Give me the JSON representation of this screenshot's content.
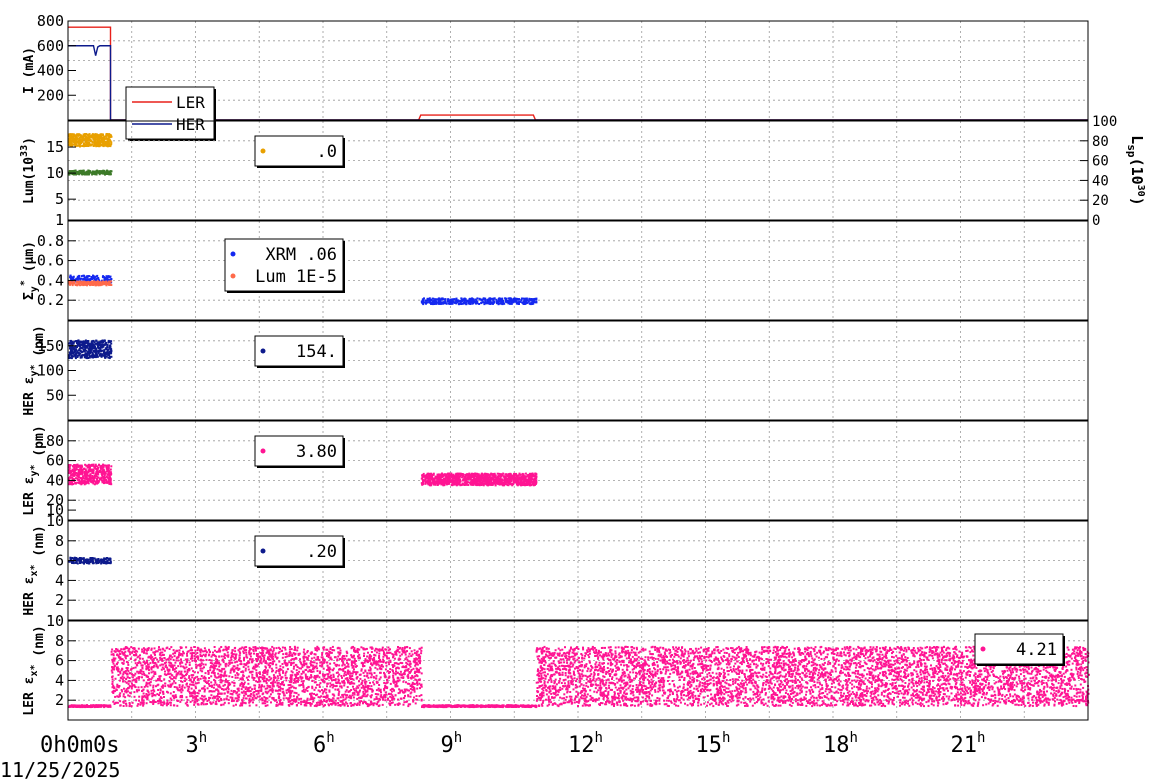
{
  "x_axis": {
    "unit_suffix": "h",
    "first_tick_label": "0h0m0s",
    "date_label": "11/25/2025",
    "tick_labels": [
      "3",
      "6",
      "9",
      "12",
      "15",
      "18",
      "21"
    ],
    "range_hours": [
      0,
      24
    ]
  },
  "colors": {
    "ler_red": "#e8201a",
    "her_navy": "#0d1a8c",
    "orange": "#e8a000",
    "green": "#3c7a28",
    "blue": "#1428f0",
    "salmon": "#ff6a4a",
    "magenta": "#ff1493",
    "grid": "#9a9a9a"
  },
  "chart_data": [
    {
      "id": "current",
      "type": "line",
      "ylabel_main": "I (mA)",
      "ylim": [
        0,
        800
      ],
      "yticks": [
        "800",
        "600",
        "400",
        "200"
      ],
      "legend": [
        {
          "label": "LER",
          "color": "#e8201a"
        },
        {
          "label": "HER",
          "color": "#0d1a8c"
        }
      ],
      "series": [
        {
          "name": "LER",
          "color": "#e8201a",
          "x": [
            0,
            1.0,
            1.0,
            8.25,
            8.3,
            10.95,
            11.0,
            24
          ],
          "y": [
            750,
            750,
            0,
            0,
            40,
            40,
            0,
            0
          ]
        },
        {
          "name": "HER",
          "color": "#0d1a8c",
          "x": [
            0,
            0.6,
            0.65,
            0.7,
            0.75,
            1.0,
            1.0,
            24
          ],
          "y": [
            600,
            600,
            520,
            590,
            600,
            600,
            0,
            0
          ]
        }
      ]
    },
    {
      "id": "luminosity",
      "type": "scatter",
      "ylabel_main": "Lum(10",
      "ylabel_sup": "33",
      "ylabel_end": ")",
      "ylim": [
        1,
        20
      ],
      "yticks": [
        "15",
        "10",
        "5",
        "1"
      ],
      "right_ylabel_main": "L",
      "right_ylabel_sub": "sp",
      "right_ylabel_mid": "(10",
      "right_ylabel_sup": "30",
      "right_ylabel_end": ")",
      "right_ylim": [
        0,
        100
      ],
      "right_yticks": [
        "100",
        "80",
        "60",
        "40",
        "20",
        "0"
      ],
      "legend": [
        {
          "label": ".0",
          "color": "#e8a000"
        }
      ],
      "series": [
        {
          "color": "#e8a000",
          "x_range": [
            0,
            1.0
          ],
          "y_mean": 16.5,
          "y_spread": 1.2
        },
        {
          "color": "#3c7a28",
          "x_range": [
            0,
            1.0
          ],
          "y_mean": 10.3,
          "y_spread": 0.4
        }
      ]
    },
    {
      "id": "sigma_y",
      "type": "scatter",
      "ylabel_main": "Σ",
      "ylabel_sub": "y",
      "ylabel_sup": "*",
      "ylabel_end": " (µm)",
      "ylim": [
        0,
        1.0
      ],
      "yticks": [
        "0.8",
        "0.6",
        "0.4",
        "0.2"
      ],
      "legend": [
        {
          "label": "XRM  .06",
          "color": "#1428f0"
        },
        {
          "label": "Lum 1E-5",
          "color": "#ff6a4a"
        }
      ],
      "series": [
        {
          "name": "XRM",
          "color": "#1428f0",
          "x_range": [
            0,
            1.0
          ],
          "y_mean": 0.42,
          "y_spread": 0.04
        },
        {
          "name": "XRM",
          "color": "#1428f0",
          "x_range": [
            8.3,
            11.0
          ],
          "y_mean": 0.2,
          "y_spread": 0.03
        },
        {
          "name": "Lum",
          "color": "#ff6a4a",
          "x_range": [
            0,
            1.0
          ],
          "y_mean": 0.38,
          "y_spread": 0.02
        }
      ]
    },
    {
      "id": "her_eps_y",
      "type": "scatter",
      "ylabel_main": "HER ε",
      "ylabel_sub": "y*",
      "ylabel_end": " (pm)",
      "ylim": [
        0,
        200
      ],
      "yticks": [
        "150",
        "100",
        "50"
      ],
      "legend": [
        {
          "label": "154.",
          "color": "#0d1a8c"
        }
      ],
      "series": [
        {
          "color": "#0d1a8c",
          "x_range": [
            0,
            1.0
          ],
          "y_mean": 145,
          "y_spread": 18
        }
      ]
    },
    {
      "id": "ler_eps_y",
      "type": "scatter",
      "ylabel_main": "LER ε",
      "ylabel_sub": "y*",
      "ylabel_end": " (pm)",
      "ylim": [
        0,
        100
      ],
      "yticks": [
        "80",
        "60",
        "40",
        "20",
        "10"
      ],
      "legend": [
        {
          "label": "3.80",
          "color": "#ff1493"
        }
      ],
      "series": [
        {
          "color": "#ff1493",
          "x_range": [
            0,
            1.0
          ],
          "y_mean": 47,
          "y_spread": 10
        },
        {
          "color": "#ff1493",
          "x_range": [
            8.3,
            11.0
          ],
          "y_mean": 42,
          "y_spread": 6
        }
      ]
    },
    {
      "id": "her_eps_x",
      "type": "scatter",
      "ylabel_main": "HER ε",
      "ylabel_sub": "x*",
      "ylabel_end": " (nm)",
      "ylim": [
        0,
        10
      ],
      "yticks": [
        "10",
        "8",
        "6",
        "4",
        "2"
      ],
      "legend": [
        {
          "label": ".20",
          "color": "#0d1a8c"
        }
      ],
      "series": [
        {
          "color": "#0d1a8c",
          "x_range": [
            0,
            1.0
          ],
          "y_mean": 6.1,
          "y_spread": 0.3
        }
      ]
    },
    {
      "id": "ler_eps_x",
      "type": "scatter",
      "ylabel_main": "LER ε",
      "ylabel_sub": "x*",
      "ylabel_end": " (nm)",
      "ylim": [
        0,
        10
      ],
      "yticks": [
        "10",
        "8",
        "6",
        "4",
        "2"
      ],
      "legend": [
        {
          "label": "4.21",
          "color": "#ff1493"
        }
      ],
      "series": [
        {
          "color": "#ff1493",
          "x_range": [
            0,
            1.0
          ],
          "y_mean": 1.5,
          "y_spread": 0.1
        },
        {
          "color": "#ff1493",
          "x_range": [
            1.0,
            8.3
          ],
          "y_mean": 4.5,
          "y_spread": 3.0
        },
        {
          "color": "#ff1493",
          "x_range": [
            8.3,
            11.0
          ],
          "y_mean": 1.5,
          "y_spread": 0.1
        },
        {
          "color": "#ff1493",
          "x_range": [
            11.0,
            24.0
          ],
          "y_mean": 4.5,
          "y_spread": 3.0
        }
      ]
    }
  ]
}
